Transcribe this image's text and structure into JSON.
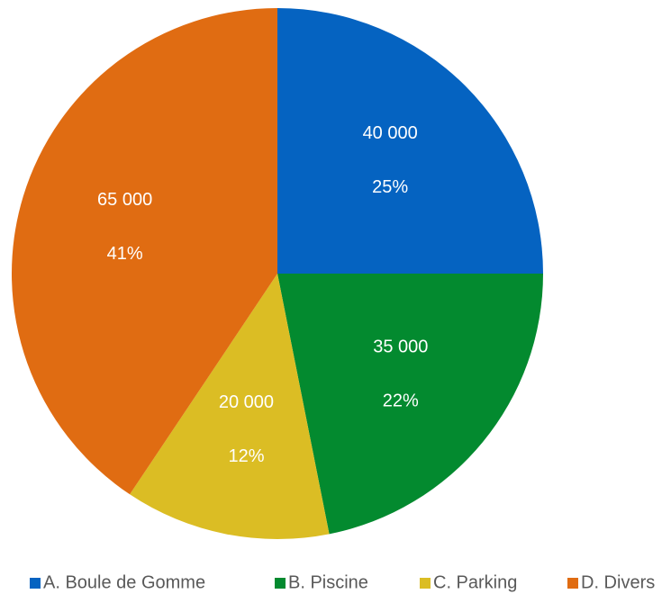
{
  "chart_data": {
    "type": "pie",
    "categories": [
      "A. Boule de Gomme",
      "B. Piscine",
      "C. Parking",
      "D. Divers"
    ],
    "values": [
      40000,
      35000,
      20000,
      65000
    ],
    "value_labels": [
      "40 000",
      "35 000",
      "20 000",
      "65 000"
    ],
    "percent_labels": [
      "25%",
      "22%",
      "12%",
      "41%"
    ],
    "colors": [
      "#0563c1",
      "#038a2f",
      "#dbbd24",
      "#e06c12"
    ],
    "legend": "bottom"
  }
}
